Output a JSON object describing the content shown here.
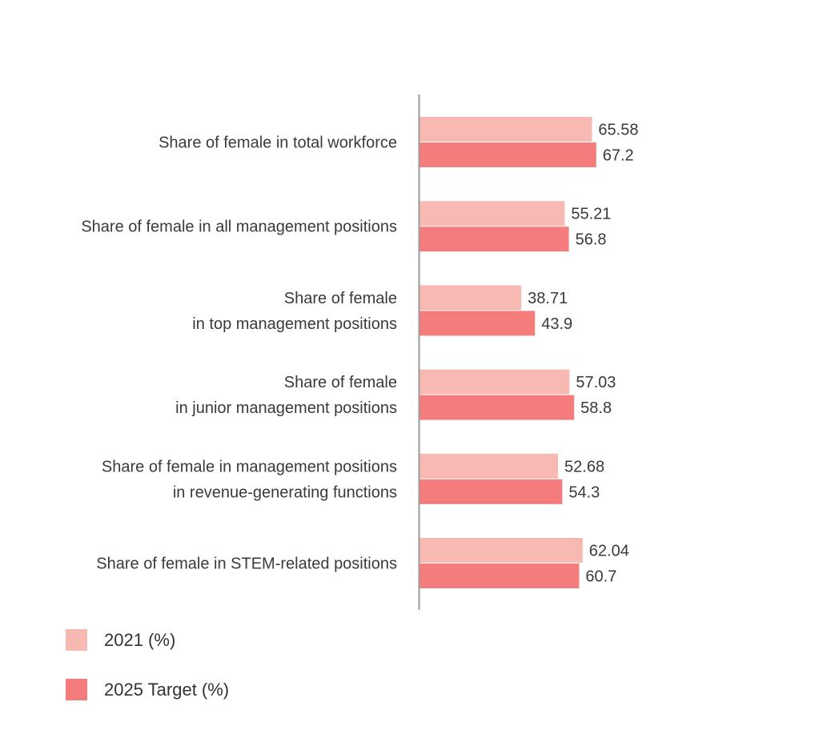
{
  "chart_data": {
    "type": "bar",
    "orientation": "horizontal",
    "categories": [
      [
        "Share of female in total workforce"
      ],
      [
        "Share of female in all management positions"
      ],
      [
        "Share of female",
        "in top management positions"
      ],
      [
        "Share of female",
        "in junior management positions"
      ],
      [
        "Share of female in management positions",
        "in revenue-generating functions"
      ],
      [
        "Share of female in STEM-related positions"
      ]
    ],
    "series": [
      {
        "name": "2021 (%)",
        "values": [
          65.58,
          55.21,
          38.71,
          57.03,
          52.68,
          62.04
        ],
        "labels": [
          "65.58",
          "55.21",
          "38.71",
          "57.03",
          "52.68",
          "62.04"
        ],
        "color": "#f8b9b3"
      },
      {
        "name": "2025 Target (%)",
        "values": [
          67.2,
          56.8,
          43.9,
          58.8,
          54.3,
          60.7
        ],
        "labels": [
          "67.2",
          "56.8",
          "43.9",
          "58.8",
          "54.3",
          "60.7"
        ],
        "color": "#f47c7c"
      }
    ],
    "xlim": [
      0,
      100
    ],
    "grid": false,
    "legend_position": "bottom-left",
    "title": "",
    "xlabel": "",
    "ylabel": ""
  }
}
